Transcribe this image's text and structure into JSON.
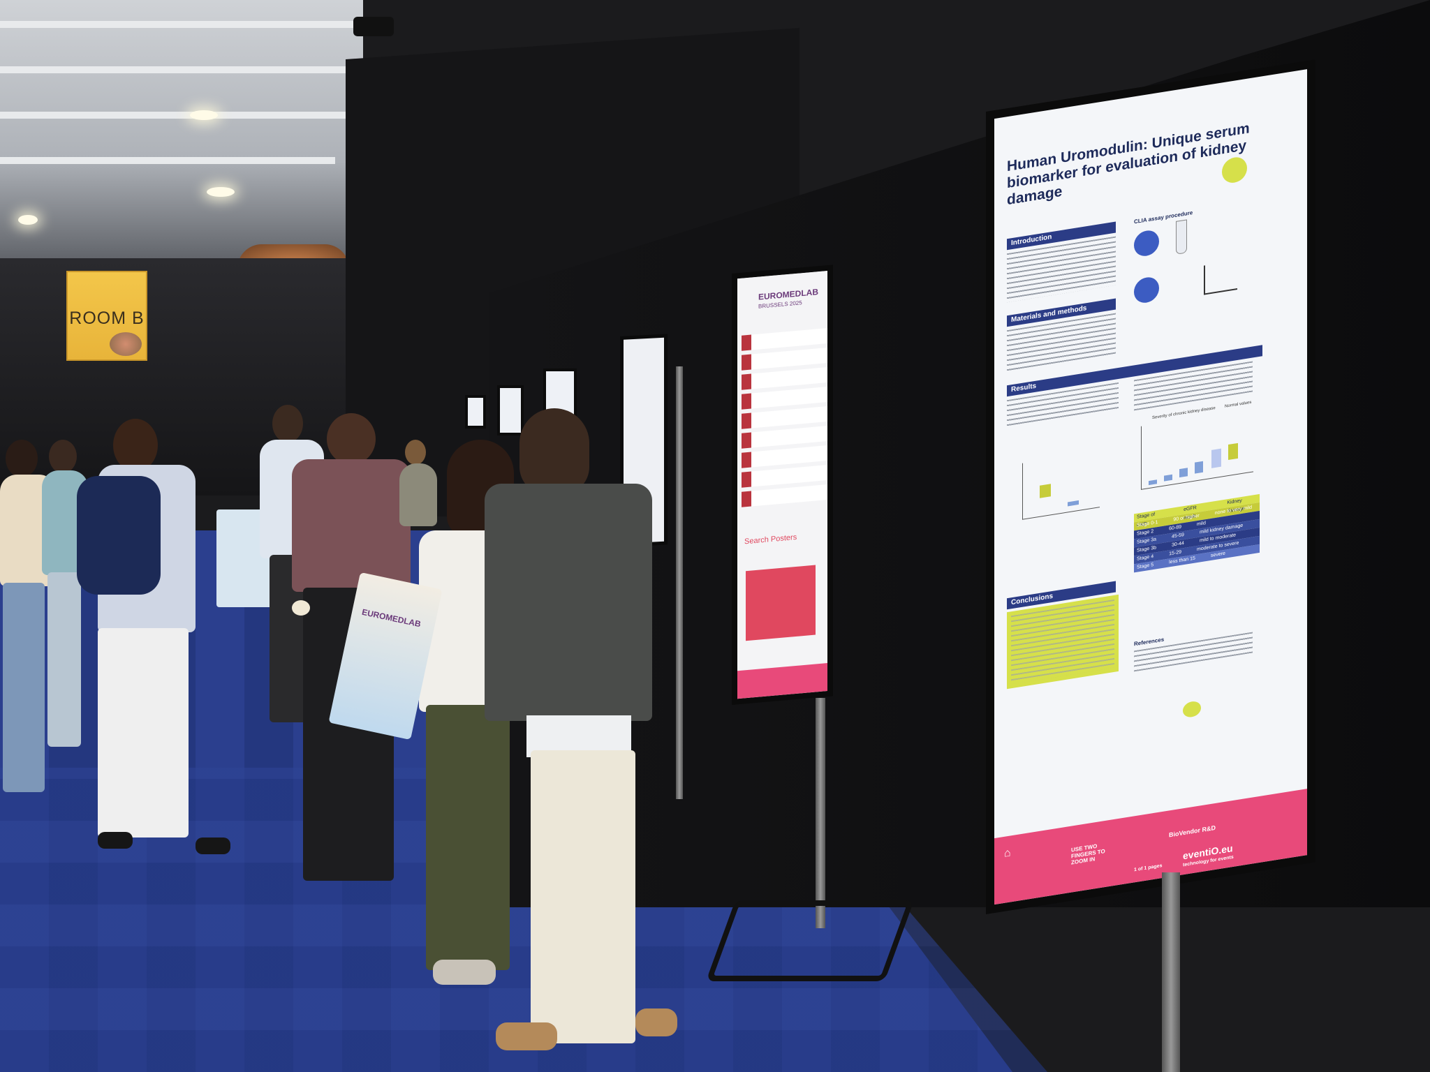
{
  "scene": {
    "room_sign": "ROOM B",
    "description_free": true
  },
  "main_poster": {
    "title": "Human Uromodulin: Unique serum biomarker for evaluation of kidney damage",
    "sections": {
      "introduction": "Introduction",
      "materials": "Materials and methods",
      "results": "Results",
      "conclusions": "Conclusions",
      "references": "References"
    },
    "assay_label": "CLIA assay procedure",
    "severity_label": "Severity of chronic kidney disease",
    "normal_label": "Normal values",
    "stage_header": "Stage of CKD",
    "egfr_header": "eGFR result",
    "damage_header": "Kidney damage",
    "stage_rows": [
      {
        "stage": "Stage 0-1",
        "egfr": "90 or higher",
        "damage": "none to very mild"
      },
      {
        "stage": "Stage 2",
        "egfr": "60-89",
        "damage": "mild"
      },
      {
        "stage": "Stage 3a",
        "egfr": "45-59",
        "damage": "mild kidney damage"
      },
      {
        "stage": "Stage 3b",
        "egfr": "30-44",
        "damage": "mild to moderate"
      },
      {
        "stage": "Stage 4",
        "egfr": "15-29",
        "damage": "moderate to severe"
      },
      {
        "stage": "Stage 5",
        "egfr": "less than 15",
        "damage": "severe"
      }
    ],
    "footer_hint": "USE TWO FINGERS TO ZOOM IN",
    "brand": "BioVendor R&D",
    "footer_logo": "eventiO.eu",
    "footer_tag": "technology for events",
    "page_info": "1 of 1 pages"
  },
  "second_poster": {
    "header": "EUROMEDLAB",
    "header_sub": "BRUSSELS 2025",
    "search_title": "Search Posters"
  },
  "tote_bag": "EUROMEDLAB",
  "colors": {
    "poster_navy": "#2b3c86",
    "poster_pink": "#e84a7a",
    "conclusion_yellow": "#d6e04a",
    "carpet_blue": "#2b3f8e",
    "drape_black": "#141416"
  }
}
